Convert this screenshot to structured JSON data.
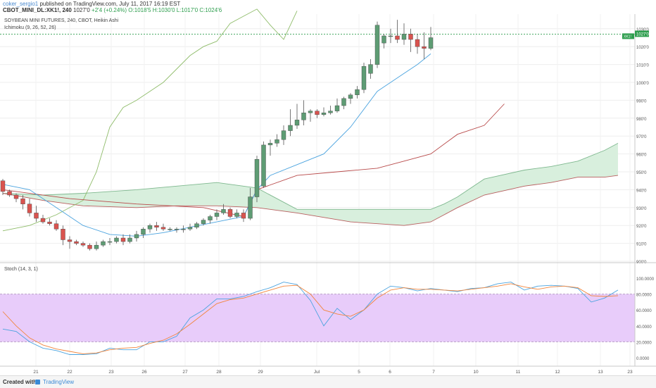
{
  "header": {
    "author": "coker_sergio1",
    "published": "published on TradingView.com, July 11, 2017 16:19 EST",
    "symbol": "CBOT_MINI_DL:XK1!, 240",
    "last": "1027'0",
    "change": "+2'4 (+0.24%)",
    "ohlc": "O:1018'5 H:1030'0 L:1017'0 C:1024'6"
  },
  "chart_data": [
    {
      "type": "candlestick",
      "title": "SOYBEAN MINI FUTURES, 240, CBOT, Heikin Ashi",
      "indicator": "Ichimoku (9, 26, 52, 26)",
      "x_ticks": [
        "21",
        "22",
        "23",
        "26",
        "27",
        "28",
        "29",
        "Jul",
        "5",
        "6",
        "7",
        "10",
        "11",
        "12",
        "13",
        "23"
      ],
      "y_ticks": [
        "900'0",
        "910'0",
        "920'0",
        "930'0",
        "940'0",
        "950'0",
        "960'0",
        "970'0",
        "980'0",
        "990'0",
        "1000'0",
        "1010'0",
        "1020'0",
        "1030'0"
      ],
      "ylim": [
        898,
        1034
      ],
      "last_price_label": "1027'0",
      "last_price": 1027,
      "close_label": "1024'6",
      "colors": {
        "up": "#5e9c74",
        "down": "#d9534f",
        "tenkan": "#4aa3df",
        "kijun": "#b84a4a",
        "chikou": "#8fbc6a",
        "cloud_bull": "#d8efdd",
        "cloud_bear": "#fbd9d6"
      },
      "candles": [
        [
          0,
          945,
          939,
          946,
          937
        ],
        [
          1,
          939,
          937,
          940,
          936
        ],
        [
          2,
          937,
          935,
          938,
          933
        ],
        [
          3,
          935,
          932,
          937,
          929
        ],
        [
          4,
          932,
          927,
          935,
          925
        ],
        [
          5,
          927,
          924,
          931,
          922
        ],
        [
          6,
          924,
          922,
          926,
          921
        ],
        [
          7,
          922,
          921,
          924,
          920
        ],
        [
          8,
          921,
          918,
          923,
          917
        ],
        [
          9,
          918,
          912,
          920,
          909
        ],
        [
          10,
          912,
          911,
          914,
          907
        ],
        [
          11,
          911,
          910,
          912,
          909
        ],
        [
          12,
          910,
          909,
          911,
          908
        ],
        [
          13,
          909,
          907,
          910,
          906
        ],
        [
          14,
          907,
          909,
          911,
          906
        ],
        [
          15,
          909,
          911,
          912,
          908
        ],
        [
          16,
          911,
          911,
          913,
          909
        ],
        [
          17,
          911,
          913,
          914,
          910
        ],
        [
          18,
          913,
          911,
          915,
          909
        ],
        [
          19,
          911,
          913,
          915,
          910
        ],
        [
          20,
          913,
          915,
          917,
          911
        ],
        [
          21,
          915,
          918,
          919,
          913
        ],
        [
          22,
          918,
          920,
          921,
          916
        ],
        [
          23,
          920,
          919,
          922,
          917
        ],
        [
          24,
          919,
          918,
          921,
          917
        ],
        [
          25,
          918,
          918,
          919,
          917
        ],
        [
          26,
          918,
          918,
          919,
          916
        ],
        [
          27,
          918,
          918,
          920,
          916
        ],
        [
          28,
          918,
          919,
          921,
          917
        ],
        [
          29,
          919,
          921,
          922,
          918
        ],
        [
          30,
          921,
          923,
          924,
          920
        ],
        [
          31,
          923,
          925,
          926,
          921
        ],
        [
          32,
          925,
          927,
          929,
          923
        ],
        [
          33,
          927,
          929,
          932,
          926
        ],
        [
          34,
          929,
          925,
          930,
          924
        ],
        [
          35,
          925,
          927,
          929,
          924
        ],
        [
          36,
          927,
          924,
          929,
          922
        ],
        [
          37,
          924,
          936,
          941,
          923
        ],
        [
          38,
          936,
          957,
          959,
          933
        ],
        [
          39,
          942,
          965,
          967,
          941
        ],
        [
          40,
          965,
          966,
          968,
          959
        ],
        [
          41,
          966,
          968,
          971,
          964
        ],
        [
          42,
          968,
          973,
          976,
          965
        ],
        [
          43,
          973,
          976,
          985,
          970
        ],
        [
          44,
          976,
          979,
          988,
          974
        ],
        [
          45,
          979,
          983,
          990,
          976
        ],
        [
          46,
          983,
          984,
          985,
          978
        ],
        [
          47,
          984,
          982,
          985,
          980
        ],
        [
          48,
          982,
          983,
          986,
          981
        ],
        [
          49,
          983,
          984,
          987,
          982
        ],
        [
          50,
          984,
          987,
          991,
          983
        ],
        [
          51,
          987,
          991,
          992,
          985
        ],
        [
          52,
          991,
          993,
          994,
          988
        ],
        [
          53,
          993,
          996,
          998,
          991
        ],
        [
          54,
          996,
          1009,
          1011,
          994
        ],
        [
          55,
          1005,
          1010,
          1013,
          1002
        ],
        [
          56,
          1010,
          1032,
          1034,
          1008
        ],
        [
          57,
          1022,
          1026,
          1027,
          1019
        ],
        [
          58,
          1026,
          1026,
          1030,
          1022
        ],
        [
          59,
          1026,
          1024,
          1035,
          1022
        ],
        [
          60,
          1024,
          1027,
          1033,
          1021
        ],
        [
          61,
          1027,
          1024,
          1030,
          1017
        ],
        [
          62,
          1024,
          1020,
          1027,
          1016
        ],
        [
          63,
          1020,
          1019,
          1028,
          1013
        ],
        [
          64,
          1019,
          1025,
          1031,
          1018
        ]
      ],
      "tenkan": [
        [
          0,
          943
        ],
        [
          4,
          940
        ],
        [
          8,
          930
        ],
        [
          12,
          920
        ],
        [
          16,
          915
        ],
        [
          20,
          914
        ],
        [
          24,
          916
        ],
        [
          28,
          919
        ],
        [
          32,
          922
        ],
        [
          36,
          925
        ],
        [
          38,
          940
        ],
        [
          40,
          948
        ],
        [
          44,
          954
        ],
        [
          48,
          960
        ],
        [
          52,
          975
        ],
        [
          56,
          995
        ],
        [
          60,
          1005
        ],
        [
          62,
          1010
        ],
        [
          64,
          1016
        ]
      ],
      "kijun": [
        [
          0,
          940
        ],
        [
          10,
          935
        ],
        [
          20,
          932
        ],
        [
          30,
          930
        ],
        [
          36,
          925
        ],
        [
          38,
          940
        ],
        [
          44,
          948
        ],
        [
          50,
          950
        ],
        [
          56,
          952
        ],
        [
          60,
          956
        ],
        [
          64,
          960
        ],
        [
          68,
          971
        ],
        [
          72,
          976
        ],
        [
          75,
          988
        ]
      ],
      "chikou": [
        [
          0,
          917
        ],
        [
          4,
          920
        ],
        [
          8,
          926
        ],
        [
          12,
          934
        ],
        [
          14,
          950
        ],
        [
          16,
          975
        ],
        [
          18,
          986
        ],
        [
          20,
          990
        ],
        [
          24,
          1000
        ],
        [
          28,
          1015
        ],
        [
          30,
          1020
        ],
        [
          32,
          1023
        ],
        [
          34,
          1033
        ],
        [
          36,
          1037
        ],
        [
          38,
          1041
        ],
        [
          40,
          1032
        ],
        [
          42,
          1024
        ],
        [
          44,
          1040
        ]
      ],
      "cloud": {
        "span_a": [
          [
            0,
            938
          ],
          [
            6,
            937
          ],
          [
            12,
            938
          ],
          [
            20,
            940
          ],
          [
            26,
            942
          ],
          [
            32,
            944
          ],
          [
            38,
            941
          ],
          [
            44,
            929
          ],
          [
            52,
            929
          ],
          [
            60,
            929
          ],
          [
            64,
            929
          ],
          [
            66,
            932
          ],
          [
            68,
            936
          ],
          [
            72,
            946
          ],
          [
            78,
            951
          ],
          [
            82,
            953
          ],
          [
            86,
            956
          ],
          [
            90,
            962
          ],
          [
            92,
            966
          ]
        ],
        "span_b": [
          [
            0,
            938
          ],
          [
            6,
            934
          ],
          [
            12,
            931
          ],
          [
            20,
            930
          ],
          [
            26,
            931
          ],
          [
            32,
            931
          ],
          [
            38,
            930
          ],
          [
            44,
            927
          ],
          [
            52,
            922
          ],
          [
            60,
            920
          ],
          [
            64,
            922
          ],
          [
            66,
            926
          ],
          [
            68,
            930
          ],
          [
            72,
            937
          ],
          [
            78,
            942
          ],
          [
            82,
            944
          ],
          [
            86,
            947
          ],
          [
            90,
            947
          ],
          [
            92,
            948
          ]
        ]
      }
    },
    {
      "type": "line",
      "title": "Stoch (14, 3, 1)",
      "ylim": [
        -20,
        120
      ],
      "y_ticks": [
        "100.0000",
        "80.0000",
        "60.0000",
        "40.0000",
        "20.0000",
        "0.0000"
      ],
      "band": [
        20,
        80
      ],
      "series": [
        {
          "color": "#4aa3df",
          "values": [
            [
              0,
              36
            ],
            [
              2,
              33
            ],
            [
              4,
              20
            ],
            [
              6,
              12
            ],
            [
              8,
              9
            ],
            [
              10,
              4
            ],
            [
              12,
              4
            ],
            [
              14,
              5
            ],
            [
              16,
              12
            ],
            [
              18,
              10
            ],
            [
              20,
              10
            ],
            [
              22,
              20
            ],
            [
              24,
              20
            ],
            [
              26,
              27
            ],
            [
              28,
              50
            ],
            [
              30,
              60
            ],
            [
              32,
              74
            ],
            [
              34,
              74
            ],
            [
              36,
              77
            ],
            [
              38,
              83
            ],
            [
              40,
              88
            ],
            [
              42,
              95
            ],
            [
              44,
              92
            ],
            [
              46,
              72
            ],
            [
              48,
              40
            ],
            [
              50,
              62
            ],
            [
              52,
              48
            ],
            [
              54,
              60
            ],
            [
              56,
              80
            ],
            [
              58,
              90
            ],
            [
              60,
              88
            ],
            [
              62,
              84
            ],
            [
              64,
              87
            ],
            [
              66,
              85
            ],
            [
              68,
              83
            ],
            [
              70,
              87
            ],
            [
              72,
              88
            ],
            [
              74,
              93
            ],
            [
              76,
              95
            ],
            [
              78,
              85
            ],
            [
              80,
              90
            ],
            [
              82,
              91
            ],
            [
              84,
              90
            ],
            [
              86,
              87
            ],
            [
              88,
              70
            ],
            [
              90,
              75
            ],
            [
              92,
              85
            ]
          ]
        },
        {
          "color": "#f2853c",
          "values": [
            [
              0,
              58
            ],
            [
              2,
              40
            ],
            [
              4,
              25
            ],
            [
              6,
              16
            ],
            [
              8,
              11
            ],
            [
              10,
              8
            ],
            [
              12,
              5
            ],
            [
              14,
              6
            ],
            [
              16,
              10
            ],
            [
              18,
              12
            ],
            [
              20,
              13
            ],
            [
              22,
              18
            ],
            [
              24,
              22
            ],
            [
              26,
              30
            ],
            [
              28,
              42
            ],
            [
              30,
              55
            ],
            [
              32,
              68
            ],
            [
              34,
              73
            ],
            [
              36,
              75
            ],
            [
              38,
              80
            ],
            [
              40,
              85
            ],
            [
              42,
              90
            ],
            [
              44,
              91
            ],
            [
              46,
              80
            ],
            [
              48,
              60
            ],
            [
              50,
              55
            ],
            [
              52,
              52
            ],
            [
              54,
              60
            ],
            [
              56,
              75
            ],
            [
              58,
              85
            ],
            [
              60,
              88
            ],
            [
              62,
              86
            ],
            [
              64,
              86
            ],
            [
              66,
              85
            ],
            [
              68,
              84
            ],
            [
              70,
              86
            ],
            [
              72,
              88
            ],
            [
              74,
              90
            ],
            [
              76,
              93
            ],
            [
              78,
              89
            ],
            [
              80,
              86
            ],
            [
              82,
              89
            ],
            [
              84,
              90
            ],
            [
              86,
              88
            ],
            [
              88,
              78
            ],
            [
              90,
              77
            ],
            [
              92,
              78
            ]
          ]
        }
      ]
    }
  ],
  "footer": {
    "created": "Created with",
    "brand": "TradingView"
  }
}
